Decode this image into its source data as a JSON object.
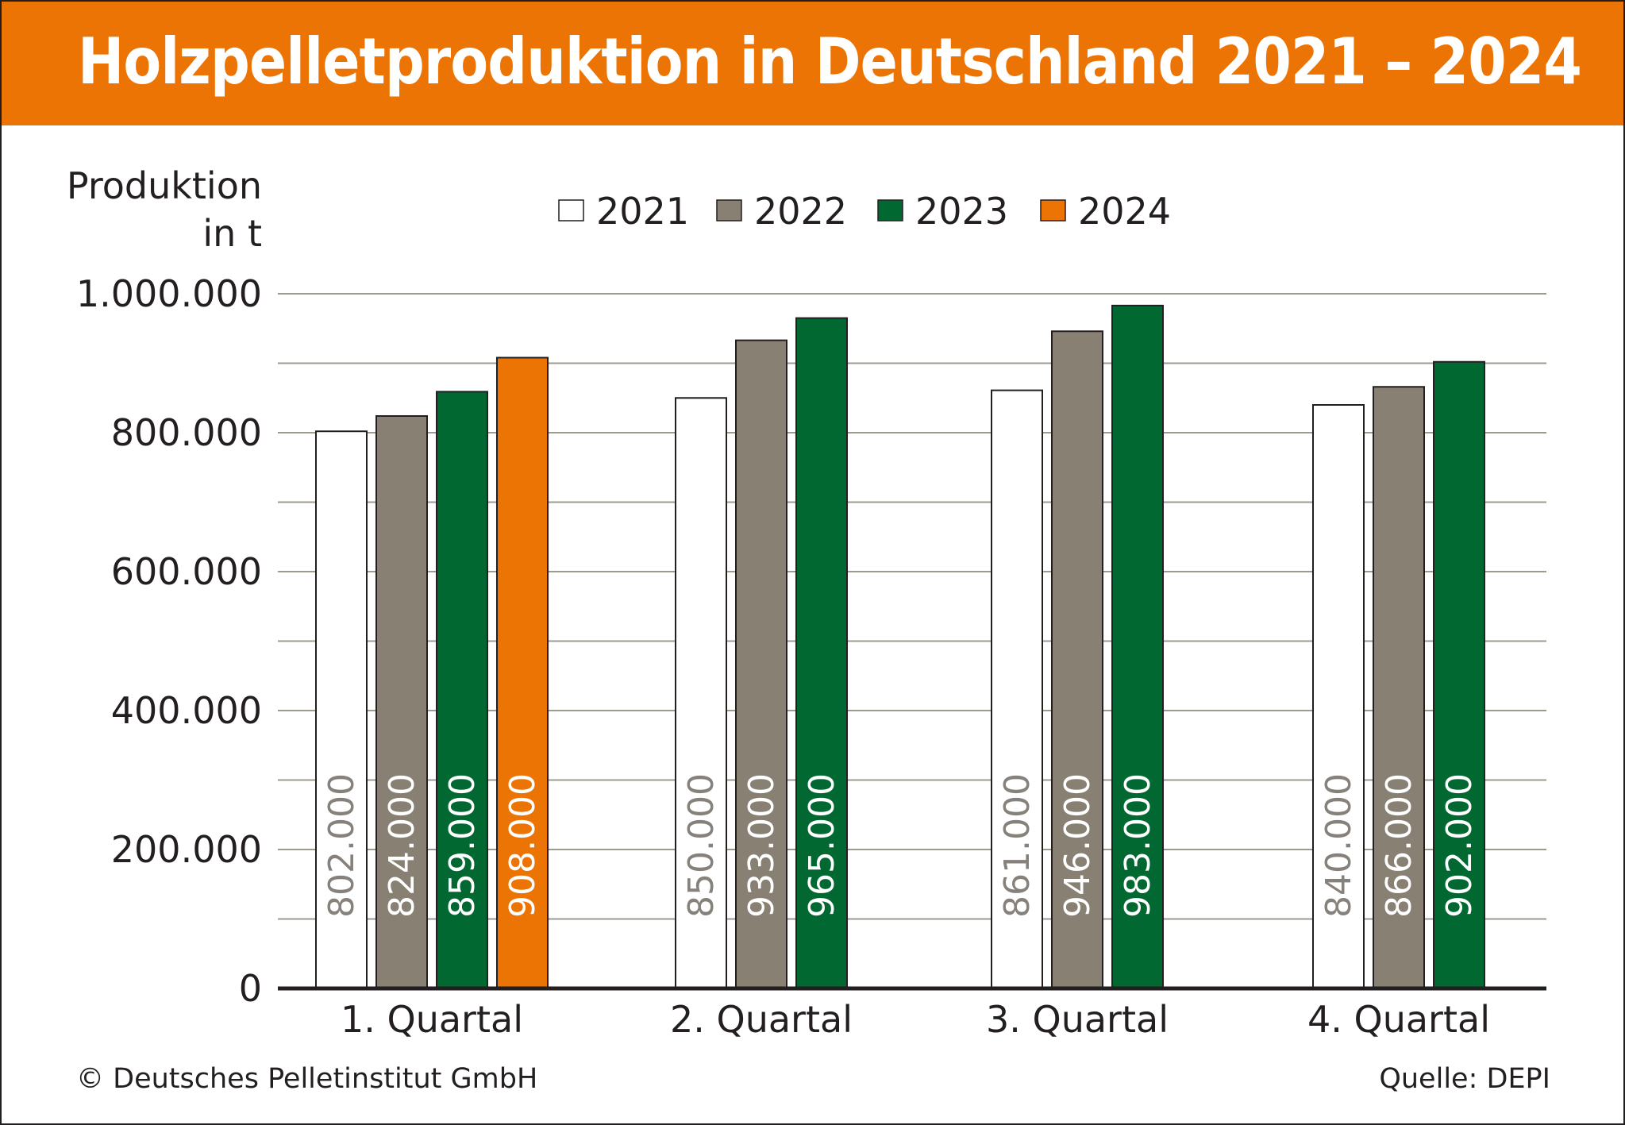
{
  "title": "Holzpelletproduktion in Deutschland 2021 – 2024",
  "footer": {
    "copyright": "© Deutsches Pelletinstitut GmbH",
    "source": "Quelle: DEPI"
  },
  "chart_data": {
    "type": "bar",
    "title": "Holzpelletproduktion in Deutschland 2021 – 2024",
    "xlabel": "",
    "ylabel_lines": [
      "Produktion",
      "in t"
    ],
    "ylim": [
      0,
      1000000
    ],
    "yticks": [
      0,
      200000,
      400000,
      600000,
      800000,
      1000000
    ],
    "ytick_labels": [
      "0",
      "200.000",
      "400.000",
      "600.000",
      "800.000",
      "1.000.000"
    ],
    "minor_gridlines_step": 100000,
    "grid": true,
    "legend_position": "top-center",
    "categories": [
      "1. Quartal",
      "2. Quartal",
      "3. Quartal",
      "4. Quartal"
    ],
    "series": [
      {
        "name": "2021",
        "color": "#ffffff",
        "label_color": "#86817a",
        "values": [
          802000,
          850000,
          861000,
          840000
        ],
        "labels": [
          "802.000",
          "850.000",
          "861.000",
          "840.000"
        ]
      },
      {
        "name": "2022",
        "color": "#878073",
        "label_color": "#ffffff",
        "values": [
          824000,
          933000,
          946000,
          866000
        ],
        "labels": [
          "824.000",
          "933.000",
          "946.000",
          "866.000"
        ]
      },
      {
        "name": "2023",
        "color": "#006830",
        "label_color": "#ffffff",
        "values": [
          859000,
          965000,
          983000,
          902000
        ],
        "labels": [
          "859.000",
          "965.000",
          "983.000",
          "902.000"
        ]
      },
      {
        "name": "2024",
        "color": "#ec7404",
        "label_color": "#ffffff",
        "values": [
          908000,
          null,
          null,
          null
        ],
        "labels": [
          "908.000",
          null,
          null,
          null
        ]
      }
    ]
  }
}
